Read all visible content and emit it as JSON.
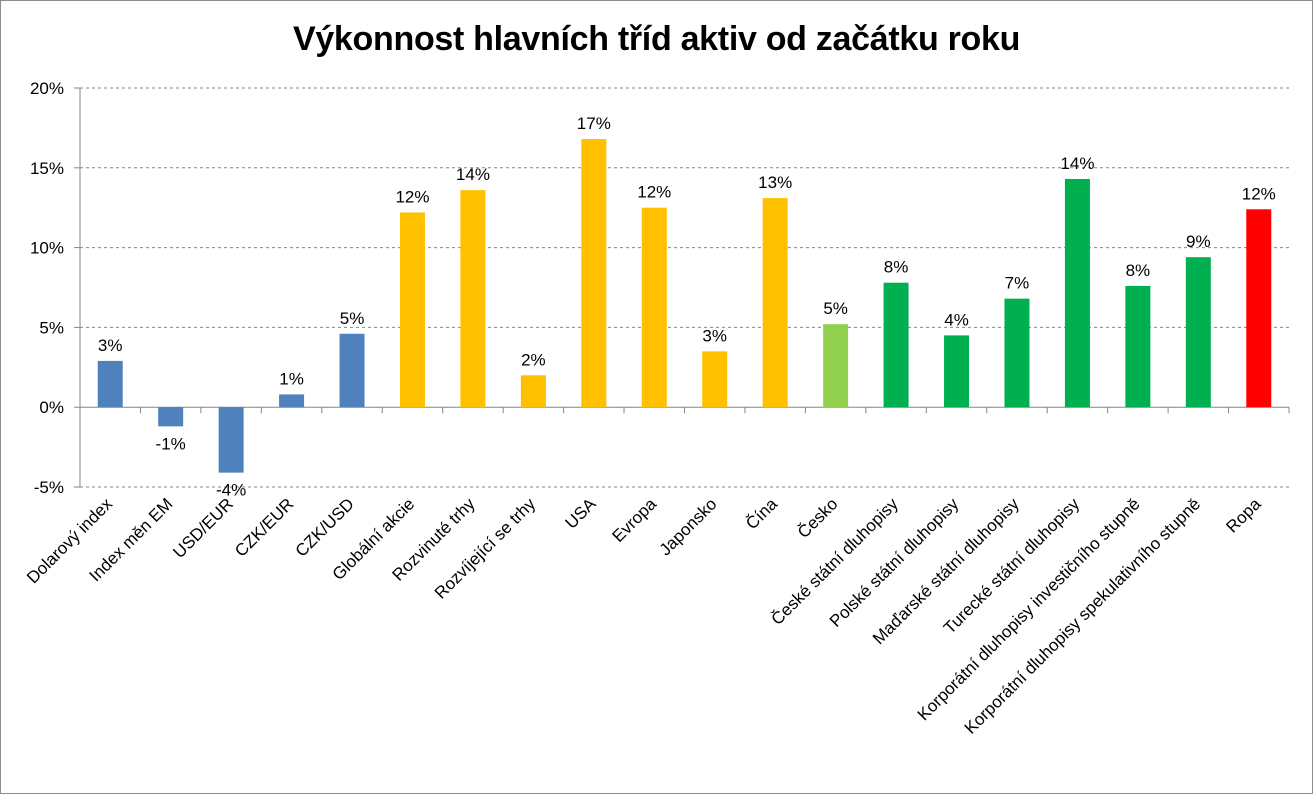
{
  "chart_data": {
    "type": "bar",
    "title": "Výkonnost hlavních tříd aktiv od začátku roku",
    "xlabel": "",
    "ylabel": "",
    "ylim": [
      -5,
      20
    ],
    "yticks": [
      -5,
      0,
      5,
      10,
      15,
      20
    ],
    "ytick_labels": [
      "-5%",
      "0%",
      "5%",
      "10%",
      "15%",
      "20%"
    ],
    "grid": "horizontal-dashed",
    "legend": "none",
    "categories": [
      "Dolarový index",
      "Index měn EM",
      "USD/EUR",
      "CZK/EUR",
      "CZK/USD",
      "Globální akcie",
      "Rozvinuté trhy",
      "Rozvíjející se trhy",
      "USA",
      "Evropa",
      "Japonsko",
      "Čína",
      "Česko",
      "České státní dluhopisy",
      "Polské státní dluhopisy",
      "Maďarské státní dluhopisy",
      "Turecké státní dluhopisy",
      "Korporátní dluhopisy investičního stupně",
      "Korporátní dluhopisy spekulativního stupně",
      "Ropa"
    ],
    "values": [
      2.9,
      -1.2,
      -4.1,
      0.8,
      4.6,
      12.2,
      13.6,
      2.0,
      16.8,
      12.5,
      3.5,
      13.1,
      5.2,
      7.8,
      4.5,
      6.8,
      14.3,
      7.6,
      9.4,
      12.4
    ],
    "data_labels": [
      "3%",
      "-1%",
      "-4%",
      "1%",
      "5%",
      "12%",
      "14%",
      "2%",
      "17%",
      "12%",
      "3%",
      "13%",
      "5%",
      "8%",
      "4%",
      "7%",
      "14%",
      "8%",
      "9%",
      "12%"
    ],
    "bar_colors": [
      "#4f81bd",
      "#4f81bd",
      "#4f81bd",
      "#4f81bd",
      "#4f81bd",
      "#ffc000",
      "#ffc000",
      "#ffc000",
      "#ffc000",
      "#ffc000",
      "#ffc000",
      "#ffc000",
      "#92d050",
      "#00b050",
      "#00b050",
      "#00b050",
      "#00b050",
      "#00b050",
      "#00b050",
      "#ff0000"
    ]
  }
}
